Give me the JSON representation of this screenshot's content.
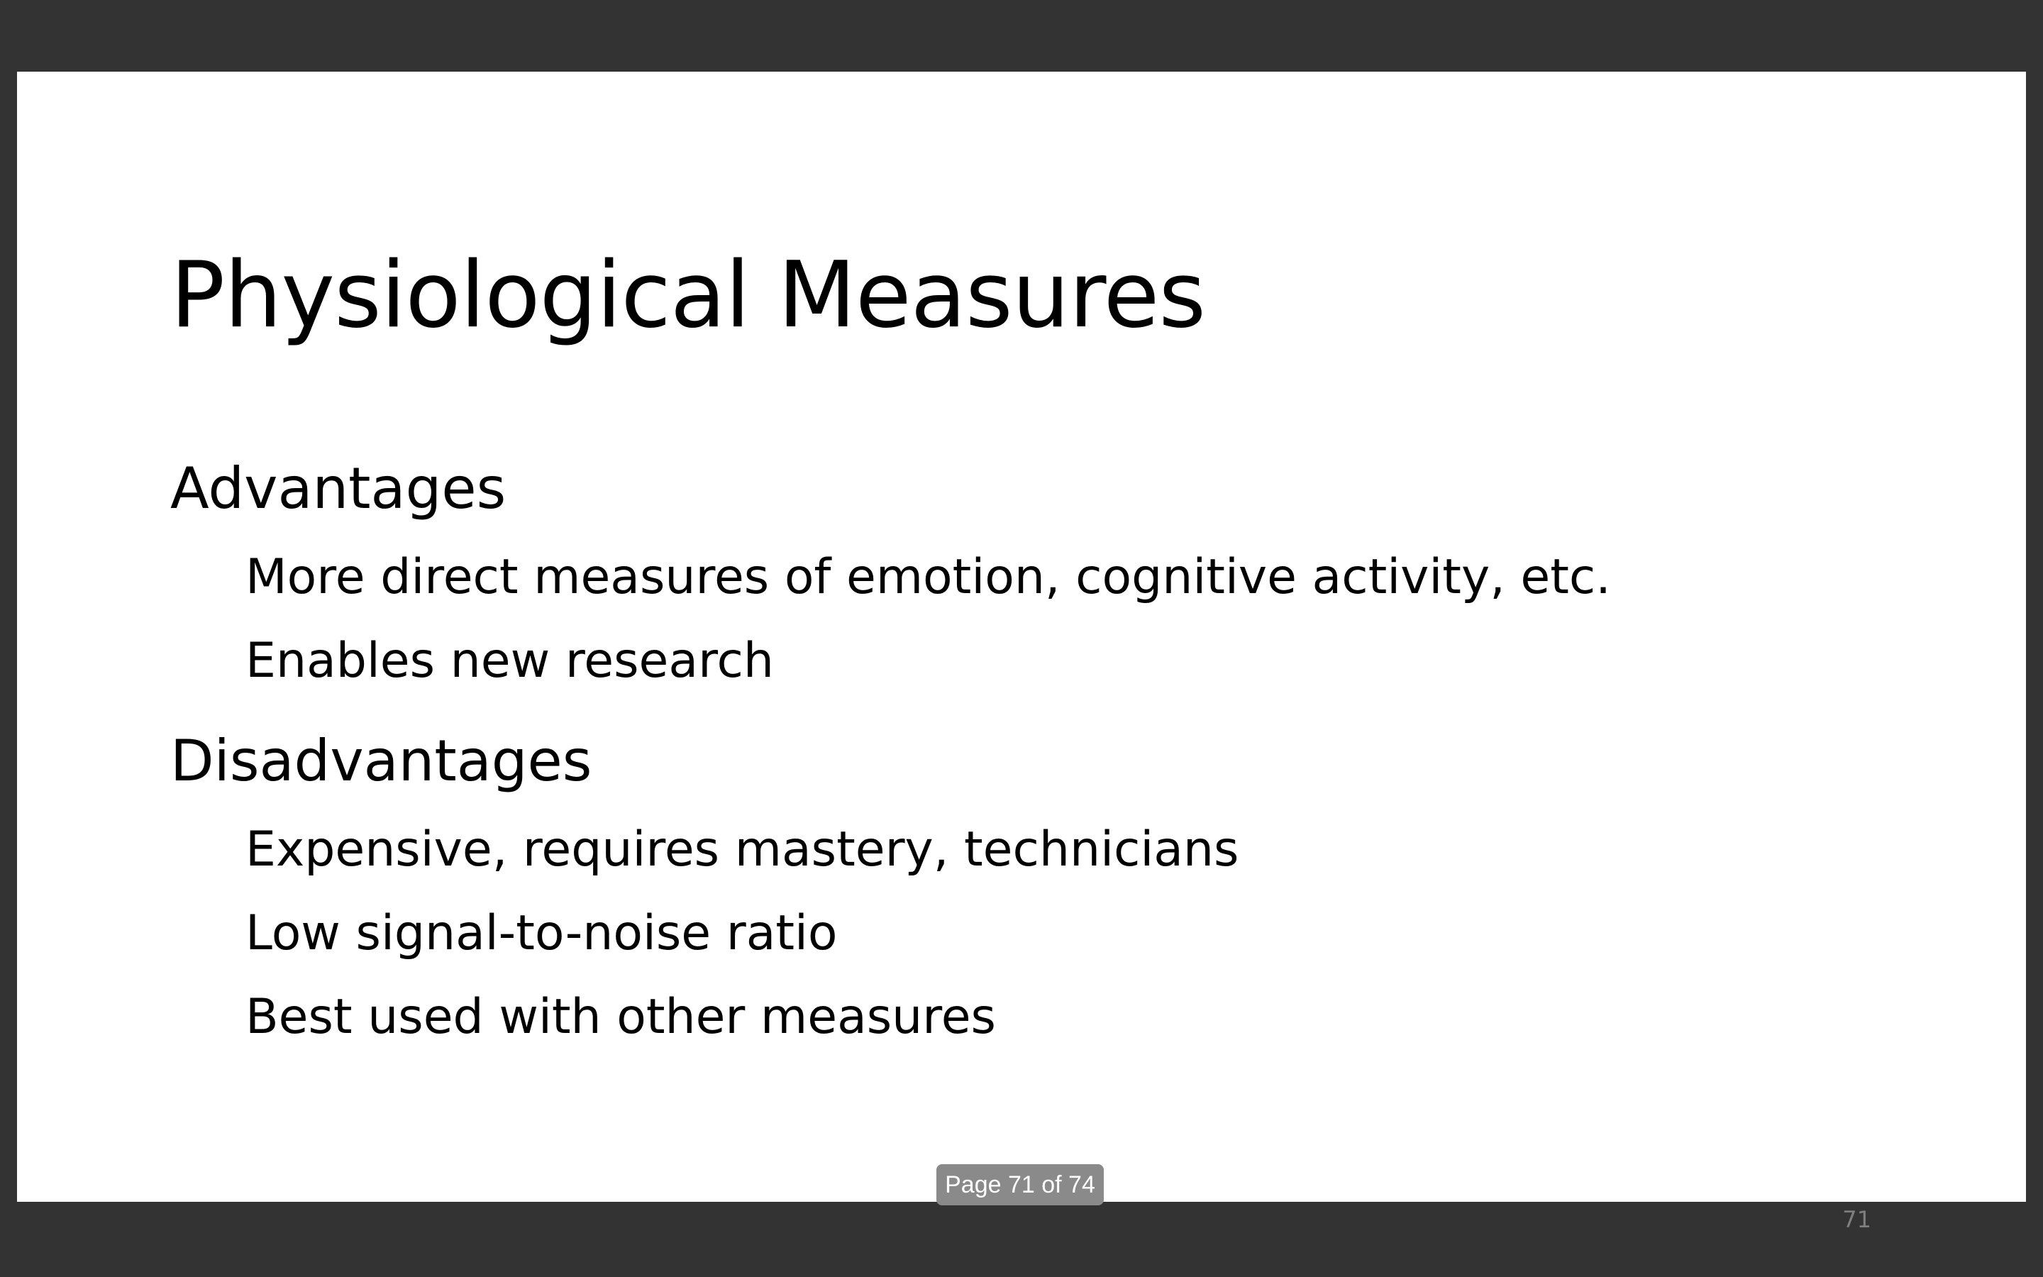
{
  "slide": {
    "title": "Physiological Measures",
    "sections": [
      {
        "heading": "Advantages",
        "bullets": [
          "More direct measures of emotion, cognitive activity, etc.",
          "Enables new research"
        ]
      },
      {
        "heading": "Disadvantages",
        "bullets": [
          "Expensive, requires mastery, technicians",
          "Low signal-to-noise ratio",
          "Best used with other measures"
        ]
      }
    ],
    "slide_number": "71"
  },
  "viewer": {
    "page_indicator": "Page 71 of 74",
    "background_color": "#333333"
  }
}
